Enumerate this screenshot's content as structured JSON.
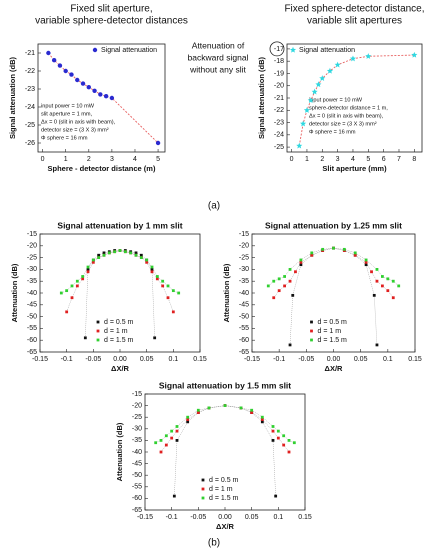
{
  "panel_labels": [
    "(a)",
    "(b)"
  ],
  "chart_data": [
    {
      "type": "scatter",
      "title": [
        "Fixed slit aperture,",
        "variable sphere-detector distances"
      ],
      "xlabel": "Sphere - detector distance (m)",
      "ylabel": "Signal attenuation (dB)",
      "xlim": [
        -0.2,
        5.3
      ],
      "ylim": [
        -26.5,
        -20.5
      ],
      "xticks": [
        0,
        1,
        2,
        3,
        4,
        5
      ],
      "yticks": [
        -26,
        -25,
        -24,
        -23,
        -22,
        -21
      ],
      "legend": "upper right",
      "marker": "circle",
      "fit_line": true,
      "fit_color": "#e86060",
      "notes": [
        "input power = 10 mW",
        "slit aperture = 1 mm,",
        "Δx = 0 (slit in axis with beam),",
        "detector size = (3 X 3) mm²",
        "Φ sphere = 16 mm"
      ],
      "series": [
        {
          "name": "Signal attenuation",
          "color": "#2a2ad0",
          "x": [
            0.25,
            0.5,
            0.75,
            1.0,
            1.25,
            1.5,
            1.75,
            2.0,
            2.25,
            2.5,
            2.75,
            3.0,
            5.0
          ],
          "values": [
            -21.0,
            -21.4,
            -21.7,
            -22.0,
            -22.2,
            -22.5,
            -22.7,
            -22.9,
            -23.1,
            -23.3,
            -23.4,
            -23.5,
            -26.0
          ]
        }
      ]
    },
    {
      "type": "scatter",
      "title": [
        "Fixed sphere-detector distance,",
        "variable slit apertures"
      ],
      "xlabel": "Slit aperture (mm)",
      "ylabel": "Signal attenuation (dB)",
      "xlim": [
        -0.3,
        8.5
      ],
      "ylim": [
        -25.4,
        -16.6
      ],
      "xticks": [
        0,
        1,
        2,
        3,
        4,
        5,
        6,
        7,
        8
      ],
      "yticks": [
        -25,
        -24,
        -23,
        -22,
        -21,
        -20,
        -19,
        -18,
        -17
      ],
      "legend": "upper left",
      "marker": "star",
      "fit_line": true,
      "fit_color": "#e86060",
      "annotation": [
        "Attenuation of",
        "backward signal",
        "without any slit"
      ],
      "notes": [
        "input power = 10 mW",
        "sphere-detector distance = 1 m,",
        "Δx = 0 (slit in axis with beam),",
        "detector size = (3 X 3) mm²",
        "Φ sphere = 16 mm"
      ],
      "series": [
        {
          "name": "Signal attenuation",
          "color": "#30d8e0",
          "x": [
            0.5,
            0.75,
            1.0,
            1.25,
            1.5,
            1.75,
            2.0,
            2.5,
            3.0,
            4.0,
            5.0,
            8.0
          ],
          "values": [
            -24.9,
            -23.1,
            -22.0,
            -21.2,
            -20.5,
            -19.9,
            -19.4,
            -18.8,
            -18.3,
            -17.8,
            -17.6,
            -17.5
          ]
        }
      ]
    },
    {
      "type": "scatter",
      "title": "Signal attenuation by 1 mm slit",
      "xlabel": "ΔX/R",
      "ylabel": "Attenuation (dB)",
      "xlim": [
        -0.15,
        0.15
      ],
      "ylim": [
        -65,
        -15
      ],
      "xticks": [
        -0.15,
        -0.1,
        -0.05,
        {
          "value": 0,
          "label": "0.00"
        },
        0.05,
        0.1,
        0.15
      ],
      "yticks": [
        -65,
        -60,
        -55,
        -50,
        -45,
        -40,
        -35,
        -30,
        -25,
        -20,
        -15
      ],
      "legend": "lower center",
      "marker": "square",
      "connector": true,
      "series": [
        {
          "name": "d = 0.5 m",
          "color": "#111111",
          "x": [
            -0.065,
            -0.06,
            -0.05,
            -0.04,
            -0.03,
            -0.02,
            -0.01,
            0,
            0.01,
            0.02,
            0.03,
            0.04,
            0.05,
            0.06,
            0.065
          ],
          "values": [
            -59,
            -30,
            -26,
            -24,
            -23,
            -22.5,
            -22,
            -22,
            -22,
            -22.5,
            -23,
            -24,
            -26,
            -30,
            -59
          ]
        },
        {
          "name": "d = 1 m",
          "color": "#e02020",
          "x": [
            -0.1,
            -0.09,
            -0.08,
            -0.07,
            -0.06,
            -0.05,
            -0.04,
            -0.03,
            -0.02,
            -0.01,
            0,
            0.01,
            0.02,
            0.03,
            0.04,
            0.05,
            0.06,
            0.07,
            0.08,
            0.09,
            0.1
          ],
          "values": [
            -48,
            -42,
            -37,
            -34,
            -31,
            -27,
            -25,
            -24,
            -23,
            -22.5,
            -22,
            -22.5,
            -23,
            -24,
            -25,
            -27,
            -31,
            -34,
            -37,
            -42,
            -48
          ]
        },
        {
          "name": "d = 1.5 m",
          "color": "#30d030",
          "x": [
            -0.11,
            -0.1,
            -0.09,
            -0.08,
            -0.07,
            -0.06,
            -0.05,
            -0.04,
            -0.03,
            -0.02,
            -0.01,
            0,
            0.01,
            0.02,
            0.03,
            0.04,
            0.05,
            0.06,
            0.07,
            0.08,
            0.09,
            0.1,
            0.11
          ],
          "values": [
            -40,
            -39,
            -37,
            -35,
            -33,
            -29,
            -26,
            -25,
            -24,
            -23,
            -22.5,
            -22,
            -22.5,
            -23,
            -24,
            -25,
            -26,
            -29,
            -33,
            -35,
            -37,
            -39,
            -40
          ]
        }
      ]
    },
    {
      "type": "scatter",
      "title": "Signal attenuation by 1.25 mm slit",
      "xlabel": "ΔX/R",
      "ylabel": "Attenuation (dB)",
      "xlim": [
        -0.15,
        0.15
      ],
      "ylim": [
        -65,
        -15
      ],
      "xticks": [
        -0.15,
        -0.1,
        -0.05,
        {
          "value": 0,
          "label": "0.00"
        },
        0.05,
        0.1,
        0.15
      ],
      "yticks": [
        -65,
        -60,
        -55,
        -50,
        -45,
        -40,
        -35,
        -30,
        -25,
        -20,
        -15
      ],
      "legend": "lower center",
      "marker": "square",
      "connector": true,
      "series": [
        {
          "name": "d = 0.5 m",
          "color": "#111111",
          "x": [
            -0.08,
            -0.075,
            -0.06,
            -0.04,
            -0.02,
            0,
            0.02,
            0.04,
            0.06,
            0.075,
            0.08
          ],
          "values": [
            -62,
            -41,
            -28,
            -24,
            -22,
            -21,
            -22,
            -24,
            -28,
            -41,
            -62
          ]
        },
        {
          "name": "d = 1 m",
          "color": "#e02020",
          "x": [
            -0.11,
            -0.1,
            -0.09,
            -0.08,
            -0.07,
            -0.06,
            -0.04,
            -0.02,
            0,
            0.02,
            0.04,
            0.06,
            0.07,
            0.08,
            0.09,
            0.1,
            0.11
          ],
          "values": [
            -42,
            -39,
            -37,
            -35,
            -31,
            -27,
            -24,
            -22,
            -21,
            -22,
            -24,
            -27,
            -31,
            -35,
            -37,
            -39,
            -42
          ]
        },
        {
          "name": "d = 1.5 m",
          "color": "#30d030",
          "x": [
            -0.12,
            -0.11,
            -0.1,
            -0.09,
            -0.08,
            -0.06,
            -0.04,
            -0.02,
            0,
            0.02,
            0.04,
            0.06,
            0.08,
            0.09,
            0.1,
            0.11,
            0.12
          ],
          "values": [
            -37,
            -35,
            -34,
            -33,
            -30,
            -26,
            -23,
            -21.5,
            -21,
            -21.5,
            -23,
            -26,
            -30,
            -33,
            -34,
            -35,
            -37
          ]
        }
      ]
    },
    {
      "type": "scatter",
      "title": "Signal attenuation by 1.5 mm slit",
      "xlabel": "ΔX/R",
      "ylabel": "Attenuation (dB)",
      "xlim": [
        -0.15,
        0.15
      ],
      "ylim": [
        -65,
        -15
      ],
      "xticks": [
        -0.15,
        -0.1,
        -0.05,
        {
          "value": 0,
          "label": "0.00"
        },
        0.05,
        0.1,
        0.15
      ],
      "yticks": [
        -65,
        -60,
        -55,
        -50,
        -45,
        -40,
        -35,
        -30,
        -25,
        -20,
        -15
      ],
      "legend": "lower center",
      "marker": "square",
      "connector": true,
      "series": [
        {
          "name": "d = 0.5 m",
          "color": "#111111",
          "x": [
            -0.095,
            -0.09,
            -0.07,
            -0.05,
            -0.03,
            0,
            0.03,
            0.05,
            0.07,
            0.09,
            0.095
          ],
          "values": [
            -59,
            -35,
            -27,
            -23,
            -21,
            -20,
            -21,
            -23,
            -27,
            -35,
            -59
          ]
        },
        {
          "name": "d = 1 m",
          "color": "#e02020",
          "x": [
            -0.12,
            -0.11,
            -0.1,
            -0.09,
            -0.07,
            -0.05,
            -0.03,
            0,
            0.03,
            0.05,
            0.07,
            0.09,
            0.1,
            0.11,
            0.12
          ],
          "values": [
            -40,
            -37,
            -34,
            -31,
            -26,
            -23,
            -21,
            -20,
            -21,
            -23,
            -26,
            -31,
            -34,
            -37,
            -40
          ]
        },
        {
          "name": "d = 1.5 m",
          "color": "#30d030",
          "x": [
            -0.13,
            -0.12,
            -0.11,
            -0.1,
            -0.09,
            -0.07,
            -0.05,
            -0.03,
            0,
            0.03,
            0.05,
            0.07,
            0.09,
            0.1,
            0.11,
            0.12,
            0.13
          ],
          "values": [
            -36,
            -35,
            -33,
            -31,
            -29,
            -25,
            -22,
            -21,
            -20,
            -21,
            -22,
            -25,
            -29,
            -31,
            -33,
            -35,
            -36
          ]
        }
      ]
    }
  ]
}
